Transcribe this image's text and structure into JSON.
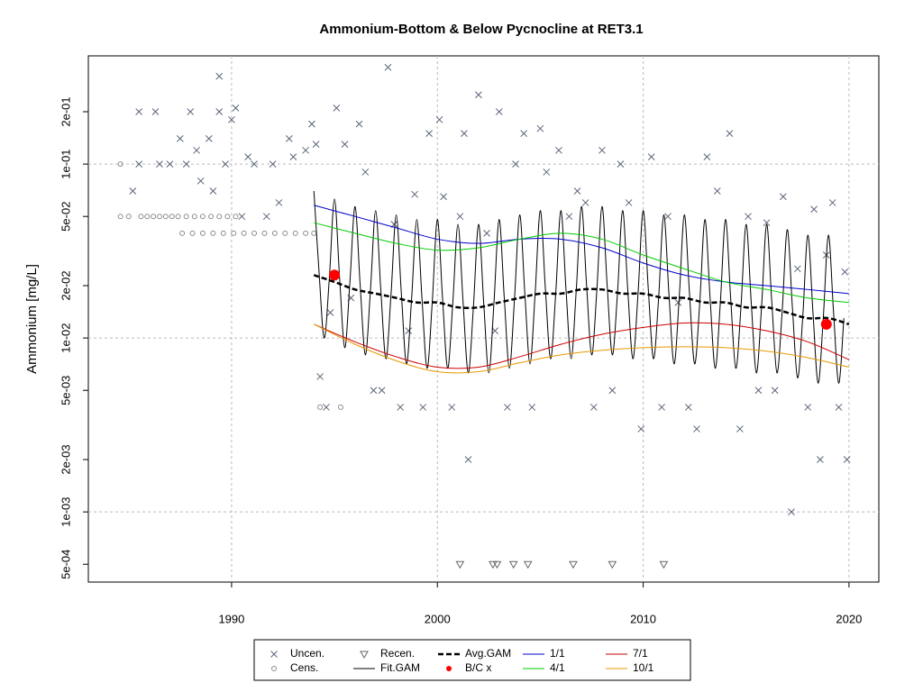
{
  "chart_data": {
    "type": "mixed",
    "title": "Ammonium-Bottom & Below Pycnocline at RET3.1",
    "y_label": "Ammonium [mg/L]",
    "xlim": [
      1983.04,
      2021.45
    ],
    "ylim": [
      0.000395,
      0.419
    ],
    "ylog": true,
    "grid": true,
    "legend": "bottom",
    "xticks": [
      1990,
      2000,
      2010,
      2020
    ],
    "yticks": [
      {
        "value": 0.0005,
        "label": "5e-04"
      },
      {
        "value": 0.001,
        "label": "1e-03"
      },
      {
        "value": 0.002,
        "label": "2e-03"
      },
      {
        "value": 0.005,
        "label": "5e-03"
      },
      {
        "value": 0.01,
        "label": "1e-02"
      },
      {
        "value": 0.02,
        "label": "2e-02"
      },
      {
        "value": 0.05,
        "label": "5e-02"
      },
      {
        "value": 0.1,
        "label": "1e-01"
      },
      {
        "value": 0.2,
        "label": "2e-01"
      }
    ],
    "series": [
      {
        "name": "Uncen.",
        "marker": "x",
        "color": "#5a6478",
        "x": [
          1985.2,
          1985.5,
          1985.5,
          1986.3,
          1986.5,
          1987.0,
          1987.5,
          1987.8,
          1988.0,
          1988.3,
          1988.5,
          1988.9,
          1989.1,
          1989.4,
          1989.4,
          1989.7,
          1990.0,
          1990.2,
          1990.5,
          1990.8,
          1991.1,
          1991.7,
          1992.0,
          1992.3,
          1992.8,
          1993.0,
          1993.6,
          1993.9,
          1994.1,
          1994.3,
          1994.6,
          1994.8,
          1995.1,
          1995.5,
          1995.8,
          1996.2,
          1996.5,
          1996.9,
          1997.3,
          1997.6,
          1997.9,
          1998.2,
          1998.6,
          1998.9,
          1999.3,
          1999.6,
          2000.1,
          2000.3,
          2000.7,
          2001.1,
          2001.3,
          2001.5,
          2002.0,
          2002.4,
          2002.8,
          2003.0,
          2003.4,
          2003.8,
          2004.2,
          2004.6,
          2005.0,
          2005.3,
          2005.9,
          2006.4,
          2006.8,
          2007.2,
          2007.6,
          2008.0,
          2008.5,
          2008.9,
          2009.3,
          2009.9,
          2010.4,
          2010.9,
          2011.2,
          2011.7,
          2012.2,
          2012.6,
          2013.1,
          2013.6,
          2014.2,
          2014.7,
          2015.1,
          2015.6,
          2016.0,
          2016.4,
          2016.8,
          2017.2,
          2017.5,
          2018.0,
          2018.3,
          2018.6,
          2018.9,
          2019.2,
          2019.5,
          2019.8,
          2019.9
        ],
        "values": [
          0.07,
          0.2,
          0.1,
          0.2,
          0.1,
          0.1,
          0.14,
          0.1,
          0.2,
          0.12,
          0.08,
          0.14,
          0.07,
          0.32,
          0.2,
          0.1,
          0.18,
          0.21,
          0.05,
          0.11,
          0.1,
          0.05,
          0.1,
          0.06,
          0.14,
          0.11,
          0.12,
          0.17,
          0.13,
          0.006,
          0.004,
          0.014,
          0.21,
          0.13,
          0.017,
          0.17,
          0.09,
          0.005,
          0.005,
          0.36,
          0.045,
          0.004,
          0.011,
          0.067,
          0.004,
          0.15,
          0.18,
          0.065,
          0.004,
          0.05,
          0.15,
          0.002,
          0.25,
          0.04,
          0.011,
          0.2,
          0.004,
          0.1,
          0.15,
          0.004,
          0.16,
          0.09,
          0.12,
          0.05,
          0.07,
          0.06,
          0.004,
          0.12,
          0.005,
          0.1,
          0.06,
          0.003,
          0.11,
          0.004,
          0.05,
          0.016,
          0.004,
          0.003,
          0.11,
          0.07,
          0.15,
          0.003,
          0.05,
          0.005,
          0.046,
          0.005,
          0.065,
          0.001,
          0.025,
          0.004,
          0.055,
          0.002,
          0.03,
          0.06,
          0.004,
          0.024,
          0.002
        ]
      },
      {
        "name": "Cens.",
        "marker": "circle",
        "color": "#8c8c8c",
        "x": [
          1984.6,
          1985.0,
          1985.6,
          1985.9,
          1986.2,
          1986.5,
          1986.8,
          1987.1,
          1987.4,
          1987.8,
          1988.2,
          1988.6,
          1989.0,
          1989.4,
          1989.8,
          1990.2,
          1987.6,
          1988.1,
          1988.6,
          1989.1,
          1989.6,
          1990.1,
          1990.6,
          1991.1,
          1991.6,
          1992.1,
          1992.6,
          1993.1,
          1993.6,
          1994.0,
          1984.6,
          1994.3,
          1995.3
        ],
        "values": [
          0.05,
          0.05,
          0.05,
          0.05,
          0.05,
          0.05,
          0.05,
          0.05,
          0.05,
          0.05,
          0.05,
          0.05,
          0.05,
          0.05,
          0.05,
          0.05,
          0.04,
          0.04,
          0.04,
          0.04,
          0.04,
          0.04,
          0.04,
          0.04,
          0.04,
          0.04,
          0.04,
          0.04,
          0.04,
          0.04,
          0.1,
          0.004,
          0.004
        ]
      },
      {
        "name": "Recen.",
        "marker": "triangle",
        "color": "#666666",
        "x": [
          2001.1,
          2002.7,
          2002.9,
          2003.7,
          2004.4,
          2006.6,
          2008.5,
          2011.0
        ],
        "values": [
          0.0005,
          0.0005,
          0.0005,
          0.0005,
          0.0005,
          0.0005,
          0.0005,
          0.0005
        ]
      },
      {
        "name": "Fit.GAM",
        "line_style": "solid",
        "color": "#000000",
        "width": 1,
        "x": [
          1994,
          1994.25,
          1994.5,
          1994.75,
          1995,
          1995.25,
          1995.5,
          1995.75,
          1996,
          1996.25,
          1996.5,
          1996.75,
          1997,
          1997.25,
          1997.5,
          1997.75,
          1998,
          1998.25,
          1998.5,
          1998.75,
          1999,
          1999.25,
          1999.5,
          1999.75,
          2000,
          2000.25,
          2000.5,
          2000.75,
          2001,
          2001.25,
          2001.5,
          2001.75,
          2002,
          2002.25,
          2002.5,
          2002.75,
          2003,
          2003.25,
          2003.5,
          2003.75,
          2004,
          2004.25,
          2004.5,
          2004.75,
          2005,
          2005.25,
          2005.5,
          2005.75,
          2006,
          2006.25,
          2006.5,
          2006.75,
          2007,
          2007.25,
          2007.5,
          2007.75,
          2008,
          2008.25,
          2008.5,
          2008.75,
          2009,
          2009.25,
          2009.5,
          2009.75,
          2010,
          2010.25,
          2010.5,
          2010.75,
          2011,
          2011.25,
          2011.5,
          2011.75,
          2012,
          2012.25,
          2012.5,
          2012.75,
          2013,
          2013.25,
          2013.5,
          2013.75,
          2014,
          2014.25,
          2014.5,
          2014.75,
          2015,
          2015.25,
          2015.5,
          2015.75,
          2016,
          2016.25,
          2016.5,
          2016.75,
          2017,
          2017.25,
          2017.5,
          2017.75,
          2018,
          2018.25,
          2018.5,
          2018.75,
          2019,
          2019.25,
          2019.5,
          2019.75
        ],
        "values": [
          0.07,
          0.024,
          0.01,
          0.022,
          0.063,
          0.022,
          0.0088,
          0.021,
          0.057,
          0.02,
          0.008,
          0.019,
          0.054,
          0.019,
          0.0076,
          0.018,
          0.051,
          0.018,
          0.0071,
          0.017,
          0.048,
          0.017,
          0.0067,
          0.016,
          0.048,
          0.017,
          0.0067,
          0.016,
          0.045,
          0.016,
          0.0063,
          0.015,
          0.045,
          0.016,
          0.0063,
          0.016,
          0.048,
          0.017,
          0.0067,
          0.017,
          0.051,
          0.018,
          0.0071,
          0.018,
          0.054,
          0.019,
          0.0076,
          0.018,
          0.054,
          0.019,
          0.0076,
          0.019,
          0.057,
          0.02,
          0.008,
          0.019,
          0.057,
          0.02,
          0.008,
          0.018,
          0.054,
          0.019,
          0.0076,
          0.018,
          0.054,
          0.019,
          0.0076,
          0.017,
          0.051,
          0.018,
          0.0071,
          0.017,
          0.051,
          0.018,
          0.0071,
          0.016,
          0.048,
          0.017,
          0.0067,
          0.016,
          0.048,
          0.017,
          0.0067,
          0.015,
          0.045,
          0.016,
          0.0063,
          0.015,
          0.045,
          0.016,
          0.0063,
          0.014,
          0.042,
          0.015,
          0.0059,
          0.013,
          0.039,
          0.014,
          0.0055,
          0.013,
          0.039,
          0.014,
          0.0055,
          0.013
        ]
      },
      {
        "name": "Avg.GAM",
        "line_style": "dashed",
        "color": "#000000",
        "width": 2.5,
        "x": [
          1994,
          1995,
          1996,
          1997,
          1998,
          1999,
          2000,
          2001,
          2002,
          2003,
          2004,
          2005,
          2006,
          2007,
          2008,
          2009,
          2010,
          2011,
          2012,
          2013,
          2014,
          2015,
          2016,
          2017,
          2018,
          2019,
          2020
        ],
        "values": [
          0.023,
          0.021,
          0.019,
          0.018,
          0.017,
          0.016,
          0.016,
          0.015,
          0.015,
          0.016,
          0.017,
          0.018,
          0.018,
          0.019,
          0.019,
          0.018,
          0.018,
          0.017,
          0.017,
          0.016,
          0.016,
          0.015,
          0.015,
          0.014,
          0.013,
          0.013,
          0.012
        ]
      },
      {
        "name": "B/C x",
        "marker": "dot",
        "color": "#ff0000",
        "x": [
          1995.0,
          2018.9
        ],
        "values": [
          0.023,
          0.012
        ]
      },
      {
        "name": "1/1",
        "line_style": "solid",
        "color": "#0000cc",
        "width": 1,
        "x": [
          1994,
          1996,
          1998,
          2000,
          2002,
          2004,
          2006,
          2008,
          2010,
          2012,
          2014,
          2016,
          2018,
          2020
        ],
        "values": [
          0.058,
          0.05,
          0.043,
          0.037,
          0.035,
          0.037,
          0.037,
          0.033,
          0.027,
          0.023,
          0.021,
          0.02,
          0.019,
          0.018
        ]
      },
      {
        "name": "4/1",
        "line_style": "solid",
        "color": "#00cc00",
        "width": 1,
        "x": [
          1994,
          1996,
          1998,
          2000,
          2002,
          2004,
          2006,
          2008,
          2010,
          2012,
          2014,
          2016,
          2018,
          2020
        ],
        "values": [
          0.046,
          0.04,
          0.035,
          0.032,
          0.033,
          0.037,
          0.04,
          0.037,
          0.03,
          0.025,
          0.021,
          0.019,
          0.017,
          0.016
        ]
      },
      {
        "name": "7/1",
        "line_style": "solid",
        "color": "#cc0000",
        "width": 1,
        "x": [
          1994,
          1996,
          1998,
          2000,
          2002,
          2004,
          2006,
          2008,
          2010,
          2012,
          2014,
          2016,
          2018,
          2020
        ],
        "values": [
          0.012,
          0.0095,
          0.0078,
          0.0068,
          0.0068,
          0.0078,
          0.0092,
          0.0105,
          0.0115,
          0.0122,
          0.012,
          0.011,
          0.0095,
          0.0075
        ]
      },
      {
        "name": "10/1",
        "line_style": "solid",
        "color": "#e69900",
        "width": 1,
        "x": [
          1994,
          1996,
          1998,
          2000,
          2002,
          2004,
          2006,
          2008,
          2010,
          2012,
          2014,
          2016,
          2018,
          2020
        ],
        "values": [
          0.012,
          0.0092,
          0.0074,
          0.0064,
          0.0064,
          0.0072,
          0.008,
          0.0085,
          0.0088,
          0.0089,
          0.0088,
          0.0084,
          0.0077,
          0.0068
        ]
      }
    ]
  }
}
